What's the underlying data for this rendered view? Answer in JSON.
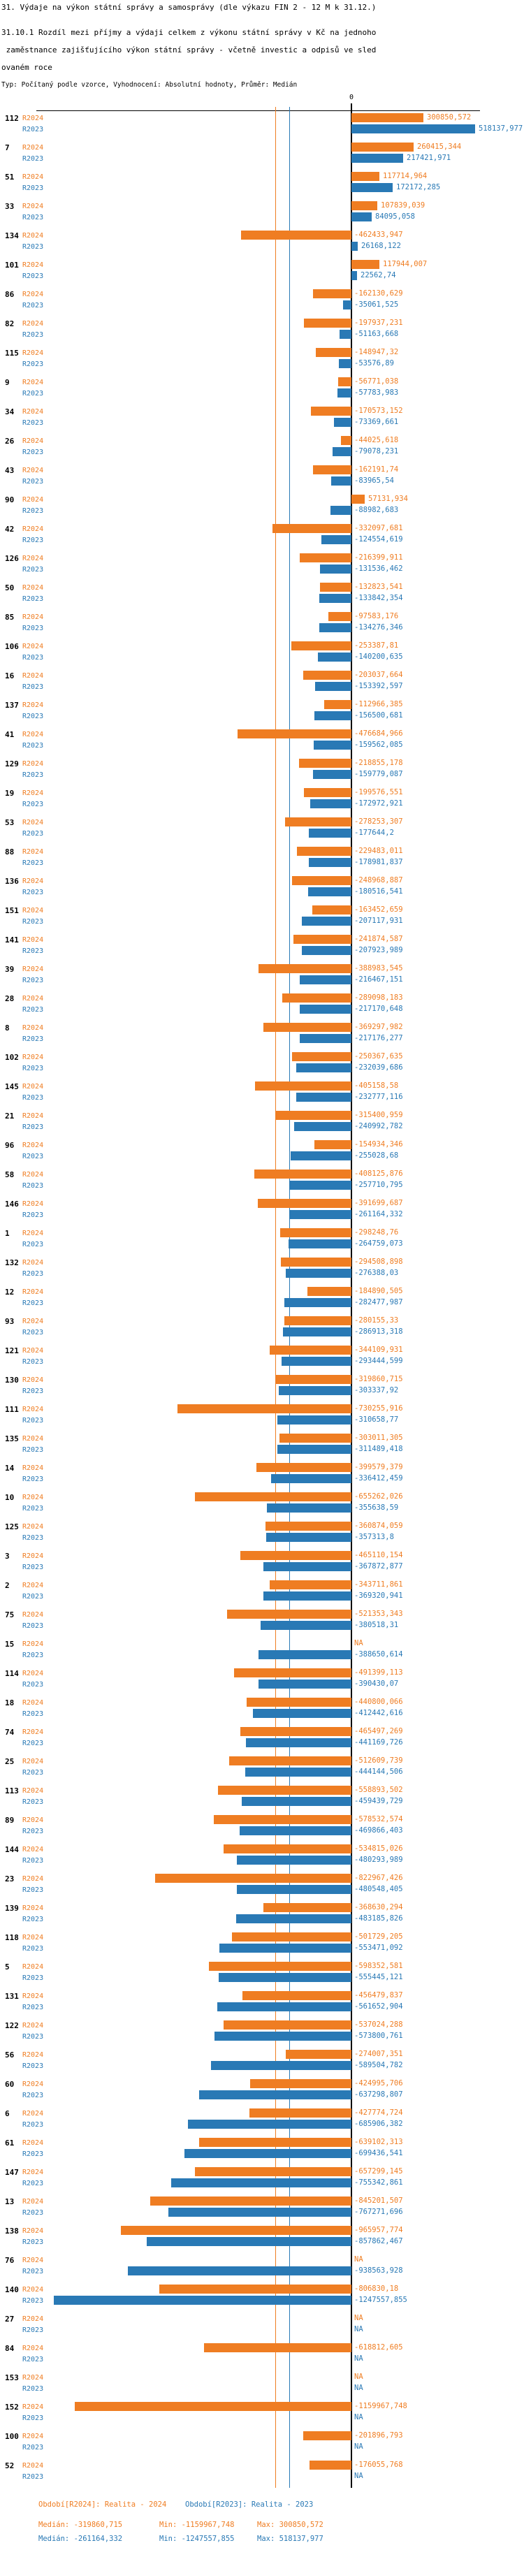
{
  "title": "31. Výdaje na výkon státní správy a samosprávy (dle výkazu FIN 2 - 12 M k 31.12.)",
  "subtitle_lines": [
    "31.10.1 Rozdíl mezi příjmy a výdaji celkem z výkonu státní správy v Kč na jednoho",
    " zaměstnance zajišťujícího výkon státní správy - včetně investic a odpisů ve sled",
    "ovaném roce"
  ],
  "meta_line": "Typ: Počítaný podle vzorce, Vyhodnocení: Absolutní hodnoty, Průměr: Medián",
  "colors": {
    "r2024": "#ef7d22",
    "r2023": "#2979b5",
    "axis": "#000000"
  },
  "chart_data": {
    "type": "bar",
    "orientation": "horizontal",
    "unit": "Kč",
    "axis_zero_label": "0",
    "series": [
      {
        "name": "R2024",
        "color": "#ef7d22"
      },
      {
        "name": "R2023",
        "color": "#2979b5"
      }
    ],
    "medians": {
      "R2024": -319860.715,
      "R2023": -261164.332
    },
    "rows": [
      {
        "id": "112",
        "r2024": 300850.572,
        "r2023": 518137.977
      },
      {
        "id": "7",
        "r2024": 260415.344,
        "r2023": 217421.971
      },
      {
        "id": "51",
        "r2024": 117714.964,
        "r2023": 172172.285
      },
      {
        "id": "33",
        "r2024": 107839.039,
        "r2023": 84095.058
      },
      {
        "id": "134",
        "r2024": -462433.947,
        "r2023": 26168.122
      },
      {
        "id": "101",
        "r2024": 117944.007,
        "r2023": 22562.74
      },
      {
        "id": "86",
        "r2024": -162130.629,
        "r2023": -35061.525
      },
      {
        "id": "82",
        "r2024": -197937.231,
        "r2023": -51163.668
      },
      {
        "id": "115",
        "r2024": -148947.32,
        "r2023": -53576.89
      },
      {
        "id": "9",
        "r2024": -56771.038,
        "r2023": -57783.983
      },
      {
        "id": "34",
        "r2024": -170573.152,
        "r2023": -73369.661
      },
      {
        "id": "26",
        "r2024": -44025.618,
        "r2023": -79078.231
      },
      {
        "id": "43",
        "r2024": -162191.74,
        "r2023": -83965.54
      },
      {
        "id": "90",
        "r2024": 57131.934,
        "r2023": -88982.683
      },
      {
        "id": "42",
        "r2024": -332097.681,
        "r2023": -124554.619
      },
      {
        "id": "126",
        "r2024": -216399.911,
        "r2023": -131536.462
      },
      {
        "id": "50",
        "r2024": -132823.541,
        "r2023": -133842.354
      },
      {
        "id": "85",
        "r2024": -97583.176,
        "r2023": -134276.346
      },
      {
        "id": "106",
        "r2024": -253387.81,
        "r2023": -140200.635
      },
      {
        "id": "16",
        "r2024": -203037.664,
        "r2023": -153392.597
      },
      {
        "id": "137",
        "r2024": -112966.385,
        "r2023": -156500.681
      },
      {
        "id": "41",
        "r2024": -476684.966,
        "r2023": -159562.085
      },
      {
        "id": "129",
        "r2024": -218855.178,
        "r2023": -159779.087
      },
      {
        "id": "19",
        "r2024": -199576.551,
        "r2023": -172972.921
      },
      {
        "id": "53",
        "r2024": -278253.307,
        "r2023": -177644.2
      },
      {
        "id": "88",
        "r2024": -229483.011,
        "r2023": -178981.837
      },
      {
        "id": "136",
        "r2024": -248968.887,
        "r2023": -180516.541
      },
      {
        "id": "151",
        "r2024": -163452.659,
        "r2023": -207117.931
      },
      {
        "id": "141",
        "r2024": -241874.587,
        "r2023": -207923.989
      },
      {
        "id": "39",
        "r2024": -388983.545,
        "r2023": -216467.151
      },
      {
        "id": "28",
        "r2024": -289098.183,
        "r2023": -217170.648
      },
      {
        "id": "8",
        "r2024": -369297.982,
        "r2023": -217176.277
      },
      {
        "id": "102",
        "r2024": -250367.635,
        "r2023": -232039.686
      },
      {
        "id": "145",
        "r2024": -405158.58,
        "r2023": -232777.116
      },
      {
        "id": "21",
        "r2024": -315400.959,
        "r2023": -240992.782
      },
      {
        "id": "96",
        "r2024": -154934.346,
        "r2023": -255028.68
      },
      {
        "id": "58",
        "r2024": -408125.876,
        "r2023": -257710.795
      },
      {
        "id": "146",
        "r2024": -391699.687,
        "r2023": -261164.332
      },
      {
        "id": "1",
        "r2024": -298248.76,
        "r2023": -264759.073
      },
      {
        "id": "132",
        "r2024": -294508.898,
        "r2023": -276388.03
      },
      {
        "id": "12",
        "r2024": -184890.505,
        "r2023": -282477.987
      },
      {
        "id": "93",
        "r2024": -280155.33,
        "r2023": -286913.318
      },
      {
        "id": "121",
        "r2024": -344109.931,
        "r2023": -293444.599
      },
      {
        "id": "130",
        "r2024": -319860.715,
        "r2023": -303337.92
      },
      {
        "id": "111",
        "r2024": -730255.916,
        "r2023": -310658.77
      },
      {
        "id": "135",
        "r2024": -303011.305,
        "r2023": -311489.418
      },
      {
        "id": "14",
        "r2024": -399579.379,
        "r2023": -336412.459
      },
      {
        "id": "10",
        "r2024": -655262.026,
        "r2023": -355638.59
      },
      {
        "id": "125",
        "r2024": -360874.059,
        "r2023": -357313.8
      },
      {
        "id": "3",
        "r2024": -465110.154,
        "r2023": -367872.877
      },
      {
        "id": "2",
        "r2024": -343711.861,
        "r2023": -369320.941
      },
      {
        "id": "75",
        "r2024": -521353.343,
        "r2023": -380518.31
      },
      {
        "id": "15",
        "r2024": null,
        "r2023": -388650.614
      },
      {
        "id": "114",
        "r2024": -491399.113,
        "r2023": -390430.07
      },
      {
        "id": "18",
        "r2024": -440800.066,
        "r2023": -412442.616
      },
      {
        "id": "74",
        "r2024": -465497.269,
        "r2023": -441169.726
      },
      {
        "id": "25",
        "r2024": -512609.739,
        "r2023": -444144.506
      },
      {
        "id": "113",
        "r2024": -558893.502,
        "r2023": -459439.729
      },
      {
        "id": "89",
        "r2024": -578532.574,
        "r2023": -469866.403
      },
      {
        "id": "144",
        "r2024": -534815.026,
        "r2023": -480293.989
      },
      {
        "id": "23",
        "r2024": -822967.426,
        "r2023": -480548.405
      },
      {
        "id": "139",
        "r2024": -368630.294,
        "r2023": -483185.826
      },
      {
        "id": "118",
        "r2024": -501729.205,
        "r2023": -553471.092
      },
      {
        "id": "5",
        "r2024": -598352.581,
        "r2023": -555445.121
      },
      {
        "id": "131",
        "r2024": -456479.837,
        "r2023": -561652.904
      },
      {
        "id": "122",
        "r2024": -537024.288,
        "r2023": -573800.761
      },
      {
        "id": "56",
        "r2024": -274007.351,
        "r2023": -589504.782
      },
      {
        "id": "60",
        "r2024": -424995.706,
        "r2023": -637298.807
      },
      {
        "id": "6",
        "r2024": -427774.724,
        "r2023": -685906.382
      },
      {
        "id": "61",
        "r2024": -639102.313,
        "r2023": -699436.541
      },
      {
        "id": "147",
        "r2024": -657299.145,
        "r2023": -755342.861
      },
      {
        "id": "13",
        "r2024": -845201.507,
        "r2023": -767271.696
      },
      {
        "id": "138",
        "r2024": -965957.774,
        "r2023": -857862.467
      },
      {
        "id": "76",
        "r2024": null,
        "r2023": -938563.928
      },
      {
        "id": "140",
        "r2024": -806830.18,
        "r2023": -1247557.855
      },
      {
        "id": "27",
        "r2024": null,
        "r2023": null
      },
      {
        "id": "84",
        "r2024": -618812.605,
        "r2023": null
      },
      {
        "id": "153",
        "r2024": null,
        "r2023": null
      },
      {
        "id": "152",
        "r2024": -1159967.748,
        "r2023": null
      },
      {
        "id": "100",
        "r2024": -201896.793,
        "r2023": null
      },
      {
        "id": "52",
        "r2024": -176055.768,
        "r2023": null
      }
    ],
    "na_label": "NA"
  },
  "footer": {
    "period_r2024": "Období[R2024]: Realita - 2024",
    "period_r2023": "Období[R2023]: Realita - 2023",
    "r2024_median": "Medián: -319860,715",
    "r2024_min": "Min: -1159967,748",
    "r2024_max": "Max: 300850,572",
    "r2023_median": "Medián: -261164,332",
    "r2023_min": "Min: -1247557,855",
    "r2023_max": "Max: 518137,977"
  }
}
